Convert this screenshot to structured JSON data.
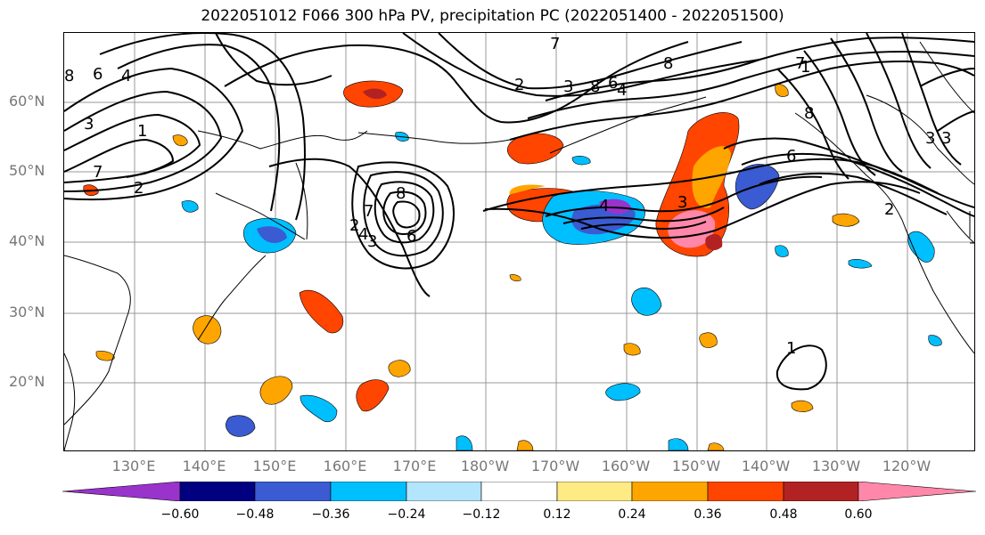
{
  "title": "2022051012 F066 300 hPa PV, precipitation PC (2022051400 - 2022051500)",
  "axes": {
    "lat_labels": [
      "60°N",
      "50°N",
      "40°N",
      "30°N",
      "20°N"
    ],
    "lon_labels": [
      "130°E",
      "140°E",
      "150°E",
      "160°E",
      "170°E",
      "180°W",
      "170°W",
      "160°W",
      "150°W",
      "140°W",
      "130°W",
      "120°W"
    ]
  },
  "colorbar": {
    "ticks": [
      "−0.60",
      "−0.48",
      "−0.36",
      "−0.24",
      "−0.12",
      "0.12",
      "0.24",
      "0.36",
      "0.48",
      "0.60"
    ],
    "colors": [
      "#9933cc",
      "#000080",
      "#3a5bd1",
      "#00bfff",
      "#b3e5fc",
      "#ffffff",
      "#ffeb84",
      "#ffa500",
      "#ff4500",
      "#b22222",
      "#ff88aa"
    ]
  },
  "contour_labels": [
    "8",
    "6",
    "4",
    "3",
    "1",
    "7",
    "2",
    "7",
    "8",
    "6",
    "4",
    "2",
    "3",
    "2",
    "7",
    "8",
    "8",
    "7",
    "3",
    "6",
    "1",
    "3",
    "3",
    "4",
    "2",
    "1",
    "6",
    "4",
    "3",
    "8"
  ]
}
